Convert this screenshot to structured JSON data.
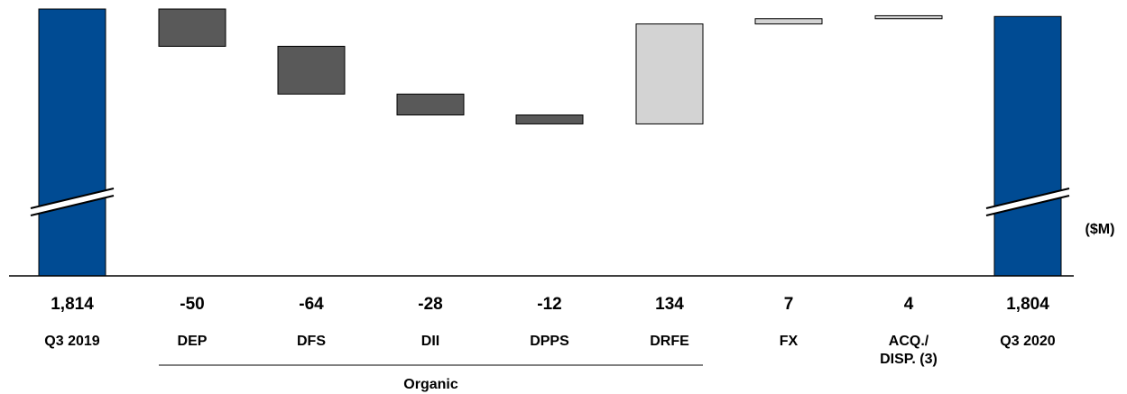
{
  "chart_data": {
    "type": "bar",
    "subtype": "waterfall",
    "title": "",
    "unit": "($M)",
    "categories": [
      "Q3 2019",
      "DEP",
      "DFS",
      "DII",
      "DPPS",
      "DRFE",
      "FX",
      "ACQ./ DISP. (3)",
      "Q3 2020"
    ],
    "category_lines": [
      [
        "Q3 2019"
      ],
      [
        "DEP"
      ],
      [
        "DFS"
      ],
      [
        "DII"
      ],
      [
        "DPPS"
      ],
      [
        "DRFE"
      ],
      [
        "FX"
      ],
      [
        "ACQ./",
        "DISP. (3)"
      ],
      [
        "Q3 2020"
      ]
    ],
    "values": [
      1814,
      -50,
      -64,
      -28,
      -12,
      134,
      7,
      4,
      1804
    ],
    "value_labels": [
      "1,814",
      "-50",
      "-64",
      "-28",
      "-12",
      "134",
      "7",
      "4",
      "1,804"
    ],
    "bar_kinds": [
      "total",
      "decrease",
      "decrease",
      "decrease",
      "decrease",
      "increase",
      "increase",
      "increase",
      "total"
    ],
    "axis_break": true,
    "y_visible_range": [
      1451,
      1814
    ],
    "group_label": "Organic",
    "group_span": [
      "DEP",
      "DRFE"
    ],
    "colors": {
      "total": "#004b93",
      "decrease": "#595959",
      "increase": "#d3d3d3",
      "outline": "#000000",
      "axis": "#000000"
    }
  }
}
